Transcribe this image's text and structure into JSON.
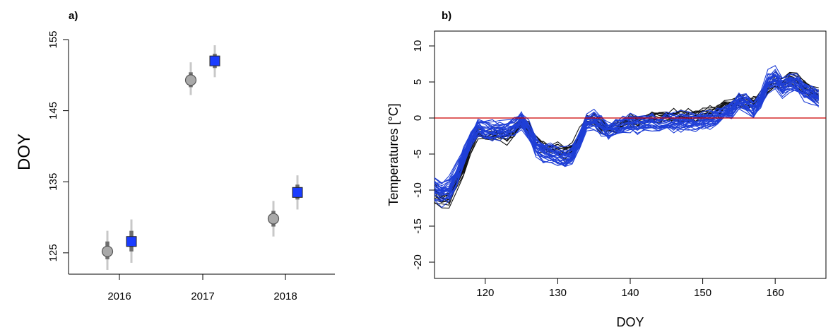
{
  "chart_data": [
    {
      "type": "scatter",
      "panel_label": "a)",
      "ylabel": "DOY",
      "xlabel": "",
      "categories": [
        "2016",
        "2017",
        "2018"
      ],
      "yticks": [
        "125",
        "135",
        "145",
        "155"
      ],
      "ylim": [
        122,
        155
      ],
      "grid": false,
      "series": [
        {
          "marker": "circle",
          "color": "#a9a9a9",
          "values": [
            125.2,
            149.3,
            129.8
          ],
          "inner_range": [
            [
              124.1,
              126.6
            ],
            [
              148.3,
              150.4
            ],
            [
              128.7,
              130.9
            ]
          ],
          "outer_range": [
            [
              122.6,
              128.1
            ],
            [
              147.2,
              151.8
            ],
            [
              127.3,
              132.3
            ]
          ]
        },
        {
          "marker": "square",
          "color": "#1a3cff",
          "values": [
            126.6,
            152.0,
            133.5
          ],
          "inner_range": [
            [
              125.2,
              128.1
            ],
            [
              151.0,
              153.0
            ],
            [
              132.5,
              134.6
            ]
          ],
          "outer_range": [
            [
              123.6,
              129.7
            ],
            [
              149.7,
              154.2
            ],
            [
              131.1,
              135.9
            ]
          ]
        }
      ]
    },
    {
      "type": "line",
      "panel_label": "b)",
      "xlabel": "DOY",
      "ylabel": "Temperatures [°C]",
      "xlim": [
        113,
        167
      ],
      "ylim": [
        -21,
        11
      ],
      "xticks": [
        "120",
        "130",
        "140",
        "150",
        "160"
      ],
      "yticks": [
        "10",
        "5",
        "0",
        "-5",
        "-10",
        "-15",
        "-20"
      ],
      "reference_line": {
        "y": 0,
        "color": "#cc0000"
      },
      "grid": false,
      "x": [
        113,
        114,
        115,
        116,
        117,
        118,
        119,
        120,
        121,
        122,
        123,
        124,
        125,
        126,
        127,
        128,
        129,
        130,
        131,
        132,
        133,
        134,
        135,
        136,
        137,
        138,
        139,
        140,
        141,
        142,
        143,
        144,
        145,
        146,
        147,
        148,
        149,
        150,
        151,
        152,
        153,
        154,
        155,
        156,
        157,
        158,
        159,
        160,
        161,
        162,
        163,
        164,
        165,
        166
      ],
      "black_series_mean": [
        -10.5,
        -11.2,
        -11,
        -9,
        -7,
        -4,
        -2,
        -2.2,
        -2.3,
        -2.2,
        -2.6,
        -1.8,
        -0.4,
        -1.5,
        -3.3,
        -3.8,
        -4.2,
        -4.3,
        -4.7,
        -4.2,
        -2.4,
        -0.6,
        -0.2,
        -1,
        -1.6,
        -1.2,
        -0.7,
        -0.3,
        -0.5,
        -0.2,
        0.1,
        -0.1,
        0.2,
        0.2,
        0.3,
        0.2,
        0.3,
        0.6,
        0.7,
        1,
        1.6,
        1.8,
        2.4,
        2.1,
        2.1,
        2.4,
        4.2,
        5.2,
        4.6,
        5.4,
        5.1,
        4.2,
        3.6,
        3.1
      ],
      "blue_series_mean": [
        -9.8,
        -10.3,
        -10,
        -8,
        -5.5,
        -3,
        -1.3,
        -1.6,
        -1.8,
        -1.8,
        -1.6,
        -1.2,
        -0.3,
        -1.8,
        -3.9,
        -4.6,
        -5,
        -5.3,
        -5.6,
        -5.1,
        -3.1,
        -0.9,
        -0.3,
        -1.1,
        -1.8,
        -1.4,
        -1,
        -0.7,
        -0.8,
        -0.7,
        -0.6,
        -0.9,
        -0.6,
        -0.6,
        -0.5,
        -0.5,
        -0.5,
        -0.4,
        -0.2,
        0.1,
        0.7,
        1.2,
        2.3,
        2.1,
        1.2,
        2.3,
        5,
        5.5,
        4.1,
        5,
        4.7,
        3.8,
        3.3,
        2.8
      ],
      "black_count": 12,
      "blue_count": 28,
      "black_spread": [
        -1,
        1
      ],
      "blue_spread": [
        -1.6,
        1.6
      ],
      "colors": {
        "black": "#111111",
        "blue": "#1f3fd6"
      }
    }
  ]
}
